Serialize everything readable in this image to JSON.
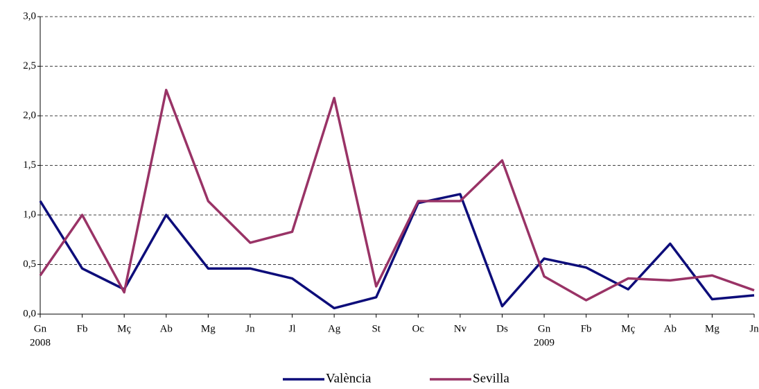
{
  "chart_data": {
    "type": "line",
    "categories": [
      "Gn",
      "Fb",
      "Mç",
      "Ab",
      "Mg",
      "Jn",
      "Jl",
      "Ag",
      "St",
      "Oc",
      "Nv",
      "Ds",
      "Gn",
      "Fb",
      "Mç",
      "Ab",
      "Mg",
      "Jn"
    ],
    "years": [
      "2008",
      null,
      null,
      null,
      null,
      null,
      null,
      null,
      null,
      null,
      null,
      null,
      "2009",
      null,
      null,
      null,
      null,
      null
    ],
    "series": [
      {
        "name": "València",
        "color": "#0d0d7a",
        "values": [
          1.14,
          0.46,
          0.25,
          1.0,
          0.46,
          0.46,
          0.36,
          0.06,
          0.17,
          1.12,
          1.21,
          0.08,
          0.56,
          0.47,
          0.25,
          0.71,
          0.15,
          0.19
        ]
      },
      {
        "name": "Sevilla",
        "color": "#993366",
        "values": [
          0.39,
          1.0,
          0.22,
          2.26,
          1.14,
          0.72,
          0.83,
          2.18,
          0.28,
          1.14,
          1.14,
          1.55,
          0.38,
          0.14,
          0.36,
          0.34,
          0.39,
          0.24
        ]
      }
    ],
    "ylim": [
      0,
      3
    ],
    "yticks": [
      {
        "value": 0,
        "label": "0,0"
      },
      {
        "value": 0.5,
        "label": "0,5"
      },
      {
        "value": 1,
        "label": "1,0"
      },
      {
        "value": 1.5,
        "label": "1,5"
      },
      {
        "value": 2,
        "label": "2,0"
      },
      {
        "value": 2.5,
        "label": "2,5"
      },
      {
        "value": 3,
        "label": "3,0"
      }
    ],
    "grid": true,
    "legend": "bottom"
  }
}
